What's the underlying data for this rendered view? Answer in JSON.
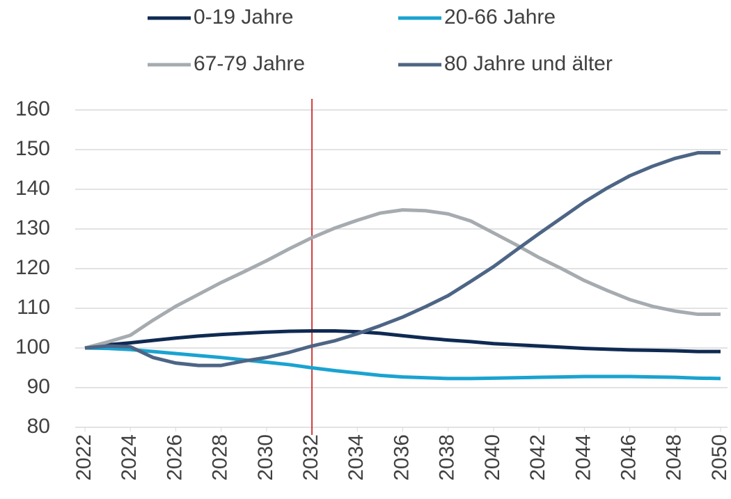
{
  "chart_data": {
    "type": "line",
    "x": [
      2022,
      2023,
      2024,
      2025,
      2026,
      2027,
      2028,
      2029,
      2030,
      2031,
      2032,
      2033,
      2034,
      2035,
      2036,
      2037,
      2038,
      2039,
      2040,
      2041,
      2042,
      2043,
      2044,
      2045,
      2046,
      2047,
      2048,
      2049,
      2050
    ],
    "xlim": [
      2022,
      2050
    ],
    "xticks": [
      2022,
      2024,
      2026,
      2028,
      2030,
      2032,
      2034,
      2036,
      2038,
      2040,
      2042,
      2044,
      2046,
      2048,
      2050
    ],
    "ylim": [
      80,
      160
    ],
    "yticks": [
      80,
      90,
      100,
      110,
      120,
      130,
      140,
      150,
      160
    ],
    "grid": true,
    "legend": "top",
    "vline": {
      "x": 2032,
      "color": "#c00000"
    },
    "series": [
      {
        "name": "0-19 Jahre",
        "color": "#0f2a52",
        "values": [
          100,
          100.8,
          101.3,
          101.9,
          102.5,
          103,
          103.4,
          103.7,
          104,
          104.2,
          104.3,
          104.3,
          104.1,
          103.7,
          103.1,
          102.5,
          102,
          101.6,
          101.1,
          100.8,
          100.5,
          100.2,
          99.9,
          99.7,
          99.5,
          99.4,
          99.3,
          99.1,
          99.1
        ]
      },
      {
        "name": "20-66 Jahre",
        "color": "#1aa3d1",
        "values": [
          100,
          99.9,
          99.6,
          99.1,
          98.6,
          98.1,
          97.6,
          97,
          96.4,
          95.8,
          95,
          94.3,
          93.7,
          93.1,
          92.7,
          92.5,
          92.3,
          92.3,
          92.4,
          92.5,
          92.6,
          92.7,
          92.8,
          92.8,
          92.8,
          92.7,
          92.6,
          92.4,
          92.3
        ]
      },
      {
        "name": "67-79 Jahre",
        "color": "#a6abb0",
        "values": [
          100,
          101.5,
          103.2,
          107,
          110.5,
          113.5,
          116.5,
          119.2,
          122,
          125,
          127.8,
          130.2,
          132.2,
          134,
          134.8,
          134.6,
          133.8,
          132,
          129,
          126,
          122.8,
          120,
          117,
          114.5,
          112.2,
          110.5,
          109.3,
          108.5,
          108.5
        ]
      },
      {
        "name": "80 Jahre und älter",
        "color": "#4d6585",
        "values": [
          100,
          100.5,
          100.3,
          97.6,
          96.2,
          95.6,
          95.6,
          96.7,
          97.6,
          98.9,
          100.5,
          101.8,
          103.6,
          105.6,
          107.8,
          110.4,
          113.2,
          116.8,
          120.5,
          124.7,
          128.8,
          132.8,
          136.8,
          140.3,
          143.4,
          145.8,
          147.8,
          149.2,
          149.2
        ]
      }
    ]
  }
}
